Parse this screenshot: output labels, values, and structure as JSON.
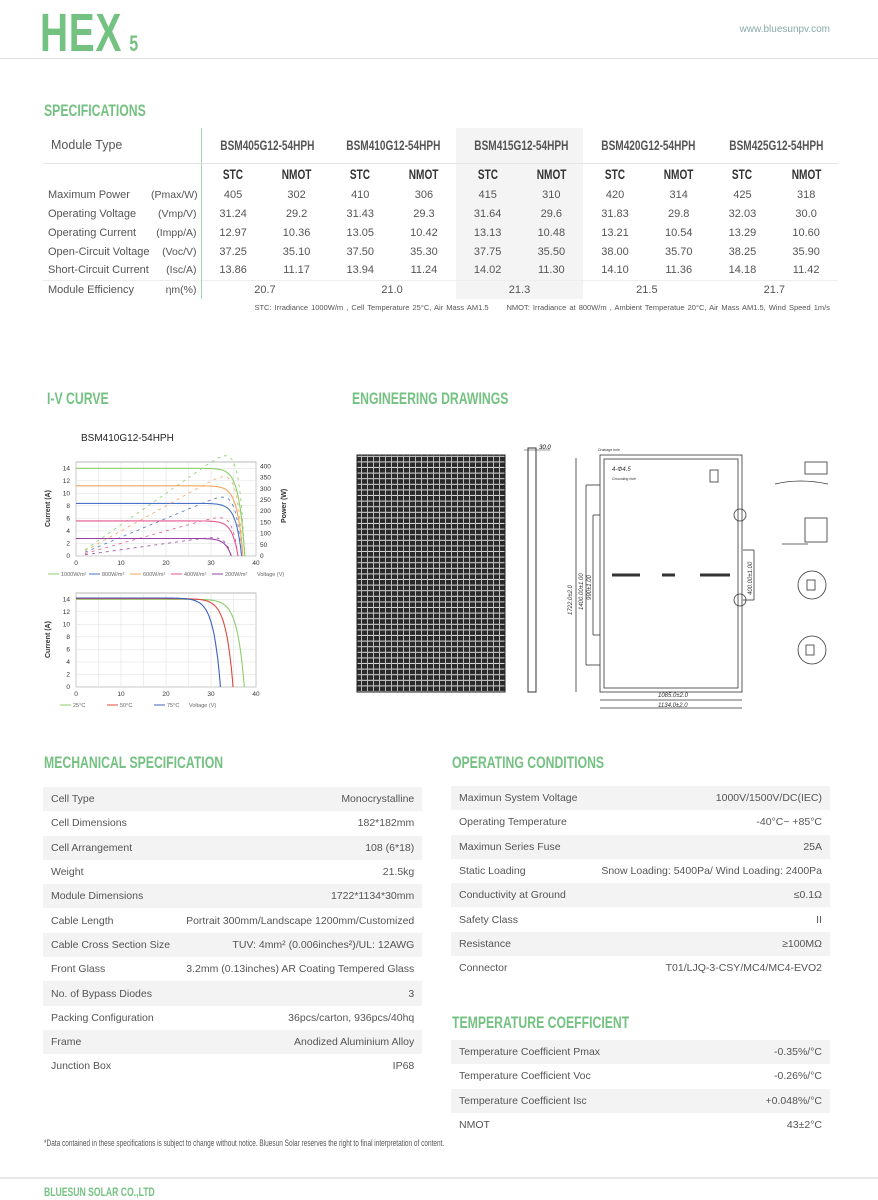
{
  "header": {
    "logo": "HEX",
    "logo_sub": "5",
    "url": "www.bluesunpv.com"
  },
  "specifications": {
    "title": "SPECIFICATIONS",
    "module_type_label": "Module Type",
    "models": [
      "BSM405G12-54HPH",
      "BSM410G12-54HPH",
      "BSM415G12-54HPH",
      "BSM420G12-54HPH",
      "BSM425G12-54HPH"
    ],
    "conditions": [
      "STC",
      "NMOT"
    ],
    "rows": [
      {
        "label": "Maximum Power",
        "unit": "(Pmax/W)",
        "values": [
          "405",
          "302",
          "410",
          "306",
          "415",
          "310",
          "420",
          "314",
          "425",
          "318"
        ]
      },
      {
        "label": "Operating Voltage",
        "unit": "(Vmp/V)",
        "values": [
          "31.24",
          "29.2",
          "31.43",
          "29.3",
          "31.64",
          "29.6",
          "31.83",
          "29.8",
          "32.03",
          "30.0"
        ]
      },
      {
        "label": "Operating Current",
        "unit": "(Impp/A)",
        "values": [
          "12.97",
          "10.36",
          "13.05",
          "10.42",
          "13.13",
          "10.48",
          "13.21",
          "10.54",
          "13.29",
          "10.60"
        ]
      },
      {
        "label": "Open-Circuit Voltage",
        "unit": "(Voc/V)",
        "values": [
          "37.25",
          "35.10",
          "37.50",
          "35.30",
          "37.75",
          "35.50",
          "38.00",
          "35.70",
          "38.25",
          "35.90"
        ]
      },
      {
        "label": "Short-Circuit Current",
        "unit": "(Isc/A)",
        "values": [
          "13.86",
          "11.17",
          "13.94",
          "11.24",
          "14.02",
          "11.30",
          "14.10",
          "11.36",
          "14.18",
          "11.42"
        ]
      }
    ],
    "efficiency": {
      "label": "Module Efficiency",
      "unit": "ηm(%)",
      "values": [
        "20.7",
        "21.0",
        "21.3",
        "21.5",
        "21.7"
      ]
    },
    "note_stc": "STC: Irradiance 1000W/m , Cell Temperature 25°C, Air Mass AM1.5",
    "note_nmot": "NMOT: Irradiance at 800W/m , Ambient Temperatue 20°C, Air Mass AM1.5, Wind Speed 1m/s"
  },
  "iv_curve": {
    "title": "I-V CURVE"
  },
  "chart_data": [
    {
      "type": "line",
      "title": "BSM410G12-54HPH",
      "xlabel": "Voltage (V)",
      "ylabel": "Current (A)",
      "y2label": "Power (W)",
      "xlim": [
        0,
        40
      ],
      "ylim": [
        0,
        15
      ],
      "y2lim": [
        0,
        420
      ],
      "xticks": [
        "0",
        "10",
        "20",
        "30",
        "40"
      ],
      "yticks": [
        "0",
        "2",
        "4",
        "6",
        "8",
        "10",
        "12",
        "14"
      ],
      "y2ticks": [
        "0",
        "50",
        "100",
        "150",
        "200",
        "250",
        "300",
        "350",
        "400"
      ],
      "grid": true,
      "legend": "bottom",
      "series": [
        {
          "name": "1000W/m²",
          "color": "#8bcf6a",
          "isc": 14.0,
          "voc": 37.5
        },
        {
          "name": "800W/m²",
          "color": "#4a72c8",
          "isc": 8.4,
          "voc": 36.8
        },
        {
          "name": "600W/m²",
          "color": "#f2a45a",
          "isc": 11.2,
          "voc": 37.1
        },
        {
          "name": "400W/m²",
          "color": "#e4568f",
          "isc": 5.6,
          "voc": 36.0
        },
        {
          "name": "200W/m²",
          "color": "#9a3fa8",
          "isc": 2.8,
          "voc": 34.5
        }
      ]
    },
    {
      "type": "line",
      "xlabel": "Voltage (V)",
      "ylabel": "Current (A)",
      "xlim": [
        0,
        40
      ],
      "ylim": [
        0,
        15
      ],
      "xticks": [
        "0",
        "10",
        "20",
        "30",
        "40"
      ],
      "yticks": [
        "0",
        "2",
        "4",
        "6",
        "8",
        "10",
        "12",
        "14"
      ],
      "grid": true,
      "legend": "bottom",
      "series": [
        {
          "name": "25°C",
          "color": "#8bcf6a",
          "isc": 14.0,
          "voc": 37.4
        },
        {
          "name": "50°C",
          "color": "#e0483c",
          "isc": 14.1,
          "voc": 34.9
        },
        {
          "name": "75°C",
          "color": "#3c5fc0",
          "isc": 14.2,
          "voc": 32.1
        }
      ]
    }
  ],
  "drawings": {
    "title": "ENGINEERING DRAWINGS",
    "thickness": "30.0",
    "height": "1722.0±2.0",
    "pitch1": "1400.00±1.00",
    "pitch2": "990±1.00",
    "pitch3": "400.00±1.00",
    "width_inner": "1085.0±2.0",
    "width": "1134.0±2.0",
    "holes": "4-Φ4.5",
    "grounding": "Grounding hole",
    "drainage": "Drainage hole"
  },
  "mechanical": {
    "title": "MECHANICAL SPECIFICATION",
    "rows": [
      [
        "Cell Type",
        "Monocrystalline"
      ],
      [
        "Cell Dimensions",
        "182*182mm"
      ],
      [
        "Cell Arrangement",
        "108 (6*18)"
      ],
      [
        "Weight",
        "21.5kg"
      ],
      [
        "Module Dimensions",
        "1722*1134*30mm"
      ],
      [
        "Cable Length",
        "Portrait 300mm/Landscape 1200mm/Customized"
      ],
      [
        "Cable Cross Section Size",
        "TUV: 4mm² (0.006inches²)/UL: 12AWG"
      ],
      [
        "Front Glass",
        "3.2mm (0.13inches) AR Coating Tempered Glass"
      ],
      [
        "No. of Bypass Diodes",
        "3"
      ],
      [
        "Packing Configuration",
        "36pcs/carton, 936pcs/40hq"
      ],
      [
        "Frame",
        "Anodized Aluminium Alloy"
      ],
      [
        "Junction Box",
        "IP68"
      ]
    ]
  },
  "operating": {
    "title": "OPERATING CONDITIONS",
    "rows": [
      [
        "Maximun System Voltage",
        "1000V/1500V/DC(IEC)"
      ],
      [
        "Operating Temperature",
        "-40°C~ +85°C"
      ],
      [
        "Maximun Series Fuse",
        "25A"
      ],
      [
        "Static Loading",
        "Snow Loading: 5400Pa/ Wind Loading: 2400Pa"
      ],
      [
        "Conductivity at Ground",
        "≤0.1Ω"
      ],
      [
        "Safety Class",
        "II"
      ],
      [
        "Resistance",
        "≥100MΩ"
      ],
      [
        "Connector",
        "T01/LJQ-3-CSY/MC4/MC4-EVO2"
      ]
    ]
  },
  "temperature": {
    "title": "TEMPERATURE COEFFICIENT",
    "rows": [
      [
        "Temperature Coefficient Pmax",
        "-0.35%/°C"
      ],
      [
        "Temperature Coefficient Voc",
        "-0.26%/°C"
      ],
      [
        "Temperature Coefficient Isc",
        "+0.048%/°C"
      ],
      [
        "NMOT",
        "43±2°C"
      ]
    ]
  },
  "footnote": "*Data contained in these specifications is subject to change without notice. Bluesun Solar reserves the right to final interpretation of content.",
  "footer": {
    "company": "BLUESUN SOLAR CO.,LTD"
  },
  "colors": {
    "accent": "#74c282"
  }
}
